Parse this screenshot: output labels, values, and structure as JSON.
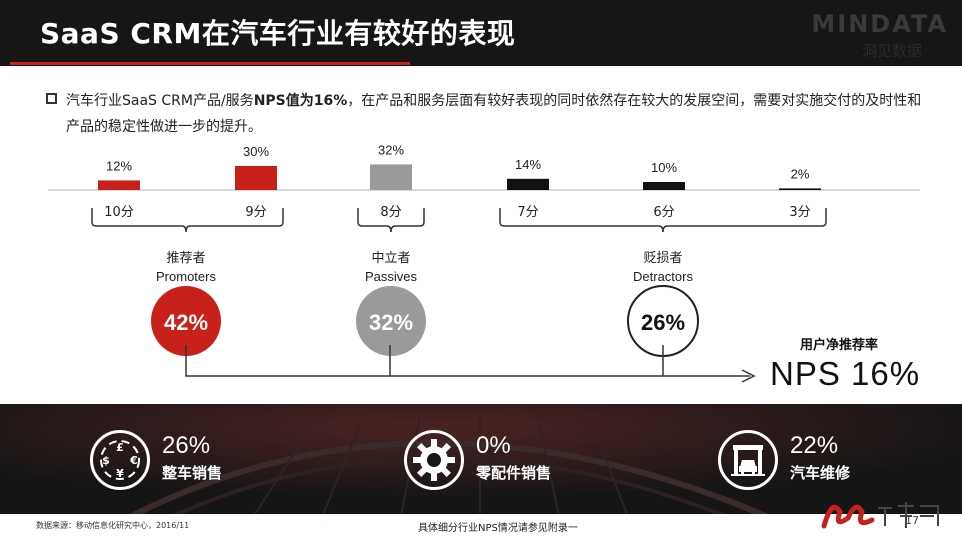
{
  "title": "SaaS CRM在汽车行业有较好的表现",
  "logo": {
    "text": "MINDATA",
    "sub": "洞见数据"
  },
  "intro": {
    "part1": "汽车行业SaaS   CRM产品/服务",
    "bold": "NPS值为16%",
    "part2": "，在产品和服务层面有较好表现的同时依然存在较大的发展空间，需要对实施交付的及时性和产品的稳定性做进一步的提升。"
  },
  "chart_data": {
    "type": "bar",
    "categories": [
      "10分",
      "9分",
      "8分",
      "7分",
      "6分",
      "3分"
    ],
    "values": [
      12,
      30,
      32,
      14,
      10,
      2
    ],
    "value_labels": [
      "12%",
      "30%",
      "32%",
      "14%",
      "10%",
      "2%"
    ],
    "colors": [
      "#c8201a",
      "#c8201a",
      "#9a9a9a",
      "#111111",
      "#111111",
      "#111111"
    ],
    "groups": [
      {
        "name_cn": "推荐者",
        "name_en": "Promoters",
        "share": "42%",
        "color": "#c8201a"
      },
      {
        "name_cn": "中立者",
        "name_en": "Passives",
        "share": "32%",
        "color": "#9a9a9a"
      },
      {
        "name_cn": "贬损者",
        "name_en": "Detractors",
        "share": "26%",
        "color": "#ffffff"
      }
    ],
    "nps": {
      "label": "用户净推荐率",
      "value": "NPS  16%"
    }
  },
  "stats": [
    {
      "value": "26%",
      "label": "整车销售",
      "icon": "currency-cycle-icon"
    },
    {
      "value": "0%",
      "label": "零配件销售",
      "icon": "gear-icon"
    },
    {
      "value": "22%",
      "label": "汽车维修",
      "icon": "garage-car-icon"
    }
  ],
  "footer": {
    "source": "数据来源：移动信息化研究中心，2016/11",
    "note": "具体细分行业NPS情况请参见附录一",
    "page": "17"
  }
}
